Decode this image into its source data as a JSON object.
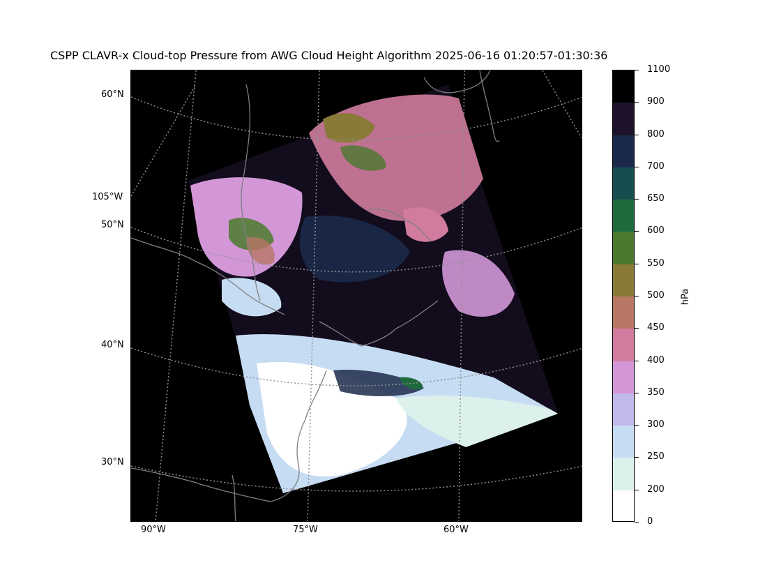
{
  "title": "CSPP CLAVR-x Cloud-top Pressure from AWG Cloud Height Algorithm 2025-06-16 01:20:57-01:30:36",
  "map": {
    "lat_labels": [
      "60°N",
      "50°N",
      "40°N",
      "30°N"
    ],
    "lon_left_label": "105°W",
    "lon_bottom_labels": [
      "90°W",
      "75°W",
      "60°W"
    ],
    "background_color": "#000000",
    "coastline_color": "#808080",
    "gridline_color": "#909090"
  },
  "colorbar": {
    "unit": "hPa",
    "tick_labels": [
      "1100",
      "900",
      "800",
      "700",
      "650",
      "600",
      "550",
      "500",
      "450",
      "400",
      "350",
      "300",
      "250",
      "200",
      "0"
    ],
    "colors_top_to_bottom": [
      "#000000",
      "#1d1229",
      "#1b2a4a",
      "#184d50",
      "#1f6b3e",
      "#4b7a2e",
      "#8a7a38",
      "#b87765",
      "#d17c9f",
      "#d397d8",
      "#c3b9ec",
      "#c6dcf2",
      "#dcf1ec",
      "#ffffff"
    ]
  }
}
